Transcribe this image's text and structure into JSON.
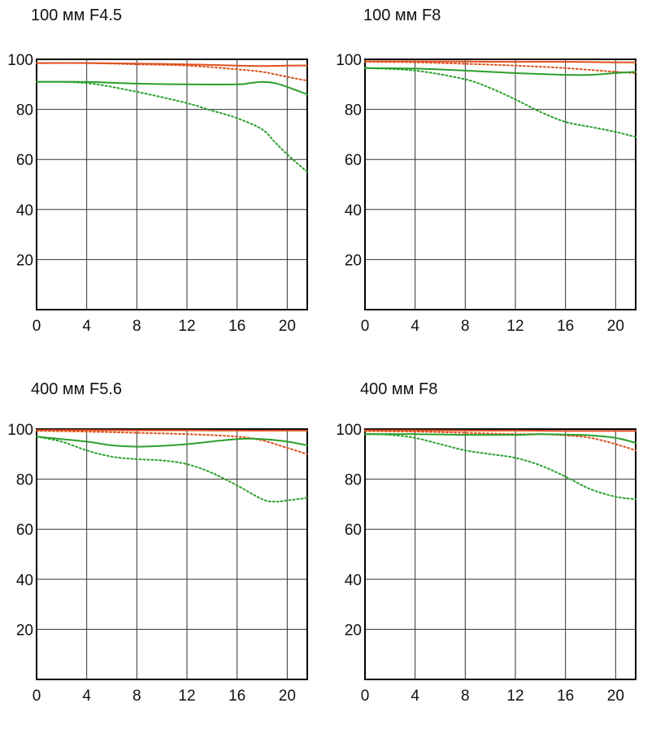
{
  "chart_data": [
    {
      "type": "line",
      "title": "100 мм F4.5",
      "xlim": [
        0,
        21.6
      ],
      "ylim": [
        0,
        100
      ],
      "x_ticks": [
        "0",
        "4",
        "8",
        "12",
        "16",
        "20"
      ],
      "y_ticks": [
        "20",
        "40",
        "60",
        "80",
        "100"
      ],
      "grid": true,
      "series": [
        {
          "color": "#e0501e",
          "style": "solid",
          "x": [
            0,
            4,
            8,
            12,
            16,
            18,
            20,
            21.6
          ],
          "y": [
            98.5,
            98.5,
            98.3,
            98,
            97.5,
            97.3,
            97.5,
            97.5
          ]
        },
        {
          "color": "#e0501e",
          "style": "dotted",
          "x": [
            0,
            4,
            8,
            12,
            16,
            18,
            20,
            21.6
          ],
          "y": [
            98.5,
            98.5,
            98,
            97.5,
            96,
            95,
            93,
            91.5
          ]
        },
        {
          "color": "#2aa02a",
          "style": "solid",
          "x": [
            0,
            4,
            8,
            12,
            16,
            17,
            18,
            19,
            20,
            21.6
          ],
          "y": [
            91,
            91,
            90.3,
            90,
            90,
            90.5,
            91,
            90.5,
            89,
            86
          ]
        },
        {
          "color": "#2aa02a",
          "style": "dotted",
          "x": [
            0,
            4,
            8,
            12,
            14,
            16,
            18,
            19,
            20,
            21.6
          ],
          "y": [
            91,
            90.5,
            87,
            82.5,
            79.5,
            76.5,
            72,
            67,
            62,
            55
          ]
        }
      ]
    },
    {
      "type": "line",
      "title": "100 мм F8",
      "xlim": [
        0,
        21.6
      ],
      "ylim": [
        0,
        100
      ],
      "x_ticks": [
        "0",
        "4",
        "8",
        "12",
        "16",
        "20"
      ],
      "y_ticks": [
        "20",
        "40",
        "60",
        "80",
        "100"
      ],
      "grid": true,
      "series": [
        {
          "color": "#e0501e",
          "style": "solid",
          "x": [
            0,
            4,
            8,
            12,
            16,
            20,
            21.6
          ],
          "y": [
            99.2,
            99.2,
            99.1,
            99,
            99,
            98.8,
            98.8
          ]
        },
        {
          "color": "#e0501e",
          "style": "dotted",
          "x": [
            0,
            4,
            8,
            12,
            16,
            20,
            21.6
          ],
          "y": [
            99,
            98.8,
            98.2,
            97.5,
            96.5,
            95,
            94.5
          ]
        },
        {
          "color": "#2aa02a",
          "style": "solid",
          "x": [
            0,
            4,
            8,
            12,
            16,
            18,
            20,
            21.6
          ],
          "y": [
            96.5,
            96.3,
            95.5,
            94.5,
            93.8,
            93.8,
            94.5,
            95
          ]
        },
        {
          "color": "#2aa02a",
          "style": "dotted",
          "x": [
            0,
            4,
            8,
            10,
            12,
            14,
            16,
            18,
            20,
            21.6
          ],
          "y": [
            96.5,
            95.5,
            92,
            88.5,
            84,
            79,
            75,
            73,
            71,
            69
          ]
        }
      ]
    },
    {
      "type": "line",
      "title": "400 мм F5.6",
      "xlim": [
        0,
        21.6
      ],
      "ylim": [
        0,
        100
      ],
      "x_ticks": [
        "0",
        "4",
        "8",
        "12",
        "16",
        "20"
      ],
      "y_ticks": [
        "20",
        "40",
        "60",
        "80",
        "100"
      ],
      "grid": true,
      "series": [
        {
          "color": "#e0501e",
          "style": "solid",
          "x": [
            0,
            4,
            8,
            12,
            16,
            20,
            21.6
          ],
          "y": [
            99.6,
            99.6,
            99.5,
            99.5,
            99.4,
            99.4,
            99.4
          ]
        },
        {
          "color": "#e0501e",
          "style": "dotted",
          "x": [
            0,
            4,
            8,
            12,
            16,
            18,
            20,
            21.6
          ],
          "y": [
            99.3,
            99,
            98.5,
            98,
            97,
            95.5,
            92.5,
            90
          ]
        },
        {
          "color": "#2aa02a",
          "style": "solid",
          "x": [
            0,
            4,
            6,
            8,
            10,
            12,
            16,
            18,
            20,
            21.6
          ],
          "y": [
            97,
            95,
            93.5,
            93,
            93.3,
            94,
            96,
            96,
            95,
            93.5
          ]
        },
        {
          "color": "#2aa02a",
          "style": "dotted",
          "x": [
            0,
            2,
            4,
            6,
            8,
            10,
            12,
            14,
            16,
            18,
            19,
            20,
            21.6
          ],
          "y": [
            97,
            95,
            91.5,
            89,
            88,
            87.5,
            86,
            82.5,
            77.5,
            72,
            71,
            71.5,
            72.5
          ]
        }
      ]
    },
    {
      "type": "line",
      "title": "400 мм F8",
      "xlim": [
        0,
        21.6
      ],
      "ylim": [
        0,
        100
      ],
      "x_ticks": [
        "0",
        "4",
        "8",
        "12",
        "16",
        "20"
      ],
      "y_ticks": [
        "20",
        "40",
        "60",
        "80",
        "100"
      ],
      "grid": true,
      "series": [
        {
          "color": "#e0501e",
          "style": "solid",
          "x": [
            0,
            4,
            8,
            12,
            16,
            20,
            21.6
          ],
          "y": [
            99.5,
            99.5,
            99.4,
            99.4,
            99.3,
            99.3,
            99.3
          ]
        },
        {
          "color": "#e0501e",
          "style": "dotted",
          "x": [
            0,
            4,
            8,
            12,
            14,
            16,
            18,
            20,
            21.6
          ],
          "y": [
            99.2,
            99,
            98.5,
            98,
            98,
            97.5,
            96.5,
            94,
            91.5
          ]
        },
        {
          "color": "#2aa02a",
          "style": "solid",
          "x": [
            0,
            4,
            8,
            12,
            14,
            16,
            18,
            20,
            21.6
          ],
          "y": [
            98,
            98,
            97.7,
            97.7,
            98,
            97.8,
            97.5,
            96.5,
            94.5
          ]
        },
        {
          "color": "#2aa02a",
          "style": "dotted",
          "x": [
            0,
            2,
            4,
            6,
            8,
            10,
            12,
            14,
            16,
            18,
            20,
            21.6
          ],
          "y": [
            98,
            97.7,
            96.5,
            94,
            91.5,
            90,
            88.5,
            85.5,
            81,
            76,
            73,
            72
          ]
        }
      ]
    }
  ]
}
